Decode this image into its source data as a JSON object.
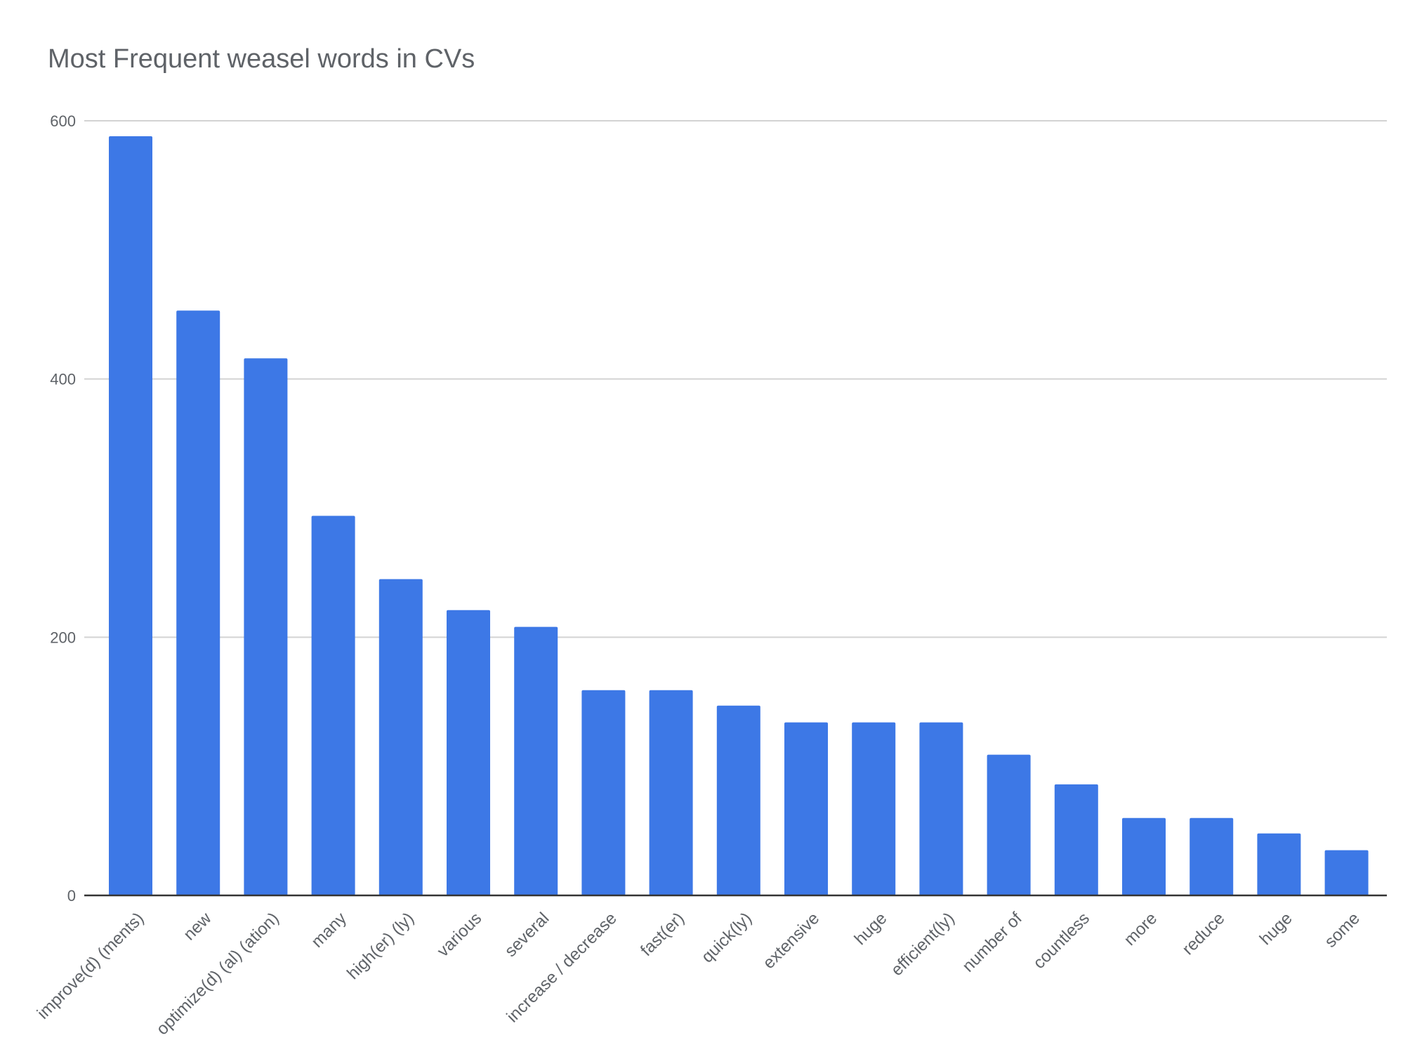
{
  "chart_data": {
    "type": "bar",
    "title": "Most Frequent weasel words in CVs",
    "xlabel": "",
    "ylabel": "",
    "categories": [
      "improve(d) (ments)",
      "new",
      "optimize(d) (al) (ation)",
      "many",
      "high(er) (ly)",
      "various",
      "several",
      "increase / decrease",
      "fast(er)",
      "quick(ly)",
      "extensive",
      "huge",
      "efficient(ly)",
      "number of",
      "countless",
      "more",
      "reduce",
      "huge",
      "some"
    ],
    "values": [
      588,
      453,
      416,
      294,
      245,
      221,
      208,
      159,
      159,
      147,
      134,
      134,
      134,
      109,
      86,
      60,
      60,
      48,
      35
    ],
    "ylim": [
      0,
      600
    ],
    "yticks": [
      0,
      200,
      400,
      600
    ],
    "grid": true,
    "legend": "none",
    "bar_color": "#3d78e6"
  }
}
